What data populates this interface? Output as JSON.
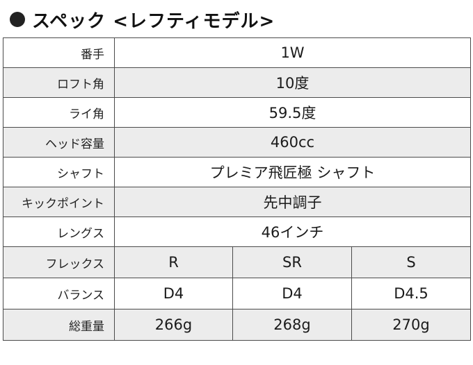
{
  "heading": {
    "text": "スペック <レフティモデル>",
    "icon": "bullet-circle",
    "bullet_color": "#222222"
  },
  "colors": {
    "border": "#4a4a4a",
    "shaded_row": "#ececec",
    "plain_row": "#ffffff"
  },
  "rows": [
    {
      "label": "番手",
      "value": "1W"
    },
    {
      "label": "ロフト角",
      "value": "10度"
    },
    {
      "label": "ライ角",
      "value": "59.5度"
    },
    {
      "label": "ヘッド容量",
      "value": "460cc"
    },
    {
      "label": "シャフト",
      "value": "プレミア飛匠極 シャフト"
    },
    {
      "label": "キックポイント",
      "value": "先中調子"
    },
    {
      "label": "レングス",
      "value": "46インチ"
    }
  ],
  "flex_rows": [
    {
      "label": "フレックス",
      "values": [
        "R",
        "SR",
        "S"
      ]
    },
    {
      "label": "バランス",
      "values": [
        "D4",
        "D4",
        "D4.5"
      ]
    },
    {
      "label": "総重量",
      "values": [
        "266g",
        "268g",
        "270g"
      ]
    }
  ]
}
